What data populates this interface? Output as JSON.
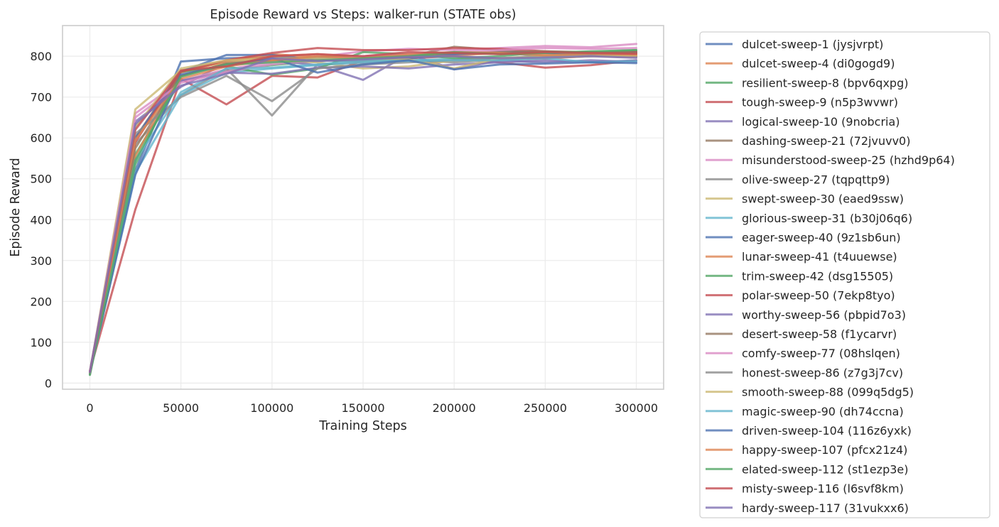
{
  "chart_data": {
    "type": "line",
    "title": "Episode Reward vs Steps: walker-run (STATE obs)",
    "xlabel": "Training Steps",
    "ylabel": "Episode Reward",
    "xlim": [
      -15000,
      315000
    ],
    "ylim": [
      -15,
      875
    ],
    "xticks": [
      0,
      50000,
      100000,
      150000,
      200000,
      250000,
      300000
    ],
    "yticks": [
      0,
      100,
      200,
      300,
      400,
      500,
      600,
      700,
      800
    ],
    "grid": true,
    "legend_position": "outside-right",
    "x": [
      0,
      25000,
      50000,
      75000,
      100000,
      125000,
      150000,
      175000,
      200000,
      225000,
      250000,
      275000,
      300000
    ],
    "series": [
      {
        "name": "dulcet-sweep-1 (jysjvrpt)",
        "color": "#4c72b0",
        "values": [
          25,
          520,
          787,
          795,
          797,
          795,
          793,
          800,
          805,
          808,
          800,
          802,
          800
        ]
      },
      {
        "name": "dulcet-sweep-4 (di0gogd9)",
        "color": "#dd8452",
        "values": [
          22,
          600,
          765,
          790,
          805,
          798,
          800,
          805,
          802,
          808,
          805,
          800,
          798
        ]
      },
      {
        "name": "resilient-sweep-8 (bpv6qxpg)",
        "color": "#55a868",
        "values": [
          20,
          560,
          740,
          765,
          778,
          788,
          795,
          790,
          790,
          795,
          800,
          805,
          808
        ]
      },
      {
        "name": "tough-sweep-9 (n5p3wvwr)",
        "color": "#c44e52",
        "values": [
          30,
          425,
          745,
          682,
          752,
          748,
          790,
          795,
          800,
          785,
          772,
          778,
          790
        ]
      },
      {
        "name": "logical-sweep-10 (9nobcria)",
        "color": "#8172b3",
        "values": [
          28,
          640,
          725,
          785,
          790,
          778,
          742,
          805,
          768,
          790,
          785,
          790,
          786
        ]
      },
      {
        "name": "dashing-sweep-21 (72jvuvv0)",
        "color": "#937860",
        "values": [
          24,
          600,
          752,
          782,
          795,
          790,
          788,
          800,
          823,
          815,
          808,
          810,
          812
        ]
      },
      {
        "name": "misunderstood-sweep-25 (hzhd9p64)",
        "color": "#da8bc3",
        "values": [
          26,
          660,
          740,
          768,
          785,
          798,
          812,
          818,
          815,
          820,
          825,
          822,
          830
        ]
      },
      {
        "name": "olive-sweep-27 (tqpqttp9)",
        "color": "#8c8c8c",
        "values": [
          22,
          585,
          705,
          770,
          655,
          780,
          785,
          790,
          785,
          792,
          795,
          800,
          800
        ]
      },
      {
        "name": "swept-sweep-30 (eaed9ssw)",
        "color": "#ccb974",
        "values": [
          25,
          670,
          765,
          785,
          790,
          785,
          770,
          775,
          790,
          795,
          800,
          802,
          805
        ]
      },
      {
        "name": "glorious-sweep-31 (b30j06q6)",
        "color": "#64b5cd",
        "values": [
          24,
          515,
          705,
          760,
          770,
          778,
          785,
          790,
          793,
          795,
          798,
          800,
          803
        ]
      },
      {
        "name": "eager-sweep-40 (9z1sb6un)",
        "color": "#4c72b0",
        "values": [
          26,
          600,
          762,
          803,
          803,
          790,
          790,
          795,
          805,
          810,
          808,
          805,
          810
        ]
      },
      {
        "name": "lunar-sweep-41 (t4uuewse)",
        "color": "#dd8452",
        "values": [
          23,
          555,
          760,
          788,
          800,
          805,
          798,
          800,
          800,
          795,
          795,
          800,
          802
        ]
      },
      {
        "name": "trim-sweep-42 (dsg15505)",
        "color": "#55a868",
        "values": [
          21,
          535,
          762,
          775,
          755,
          770,
          810,
          805,
          795,
          800,
          810,
          808,
          815
        ]
      },
      {
        "name": "polar-sweep-50 (7ekp8tyo)",
        "color": "#c44e52",
        "values": [
          27,
          590,
          762,
          790,
          808,
          820,
          815,
          815,
          820,
          818,
          812,
          808,
          810
        ]
      },
      {
        "name": "worthy-sweep-56 (pbpid7o3)",
        "color": "#8172b3",
        "values": [
          24,
          630,
          740,
          760,
          757,
          772,
          775,
          770,
          780,
          785,
          790,
          785,
          790
        ]
      },
      {
        "name": "desert-sweep-58 (f1ycarvr)",
        "color": "#937860",
        "values": [
          23,
          575,
          752,
          782,
          790,
          798,
          800,
          805,
          808,
          810,
          812,
          810,
          808
        ]
      },
      {
        "name": "comfy-sweep-77 (08hslqen)",
        "color": "#da8bc3",
        "values": [
          25,
          650,
          735,
          762,
          780,
          790,
          800,
          805,
          810,
          815,
          820,
          818,
          820
        ]
      },
      {
        "name": "honest-sweep-86 (z7g3j7cv)",
        "color": "#8c8c8c",
        "values": [
          22,
          610,
          700,
          752,
          690,
          770,
          780,
          785,
          790,
          795,
          798,
          800,
          805
        ]
      },
      {
        "name": "smooth-sweep-88 (099q5dg5)",
        "color": "#ccb974",
        "values": [
          24,
          625,
          770,
          790,
          795,
          795,
          790,
          792,
          770,
          795,
          798,
          800,
          802
        ]
      },
      {
        "name": "magic-sweep-90 (dh74ccna)",
        "color": "#64b5cd",
        "values": [
          23,
          545,
          712,
          770,
          772,
          780,
          790,
          788,
          790,
          790,
          795,
          785,
          788
        ]
      },
      {
        "name": "driven-sweep-104 (116z6yxk)",
        "color": "#4c72b0",
        "values": [
          26,
          510,
          755,
          778,
          795,
          760,
          780,
          790,
          768,
          780,
          782,
          785,
          783
        ]
      },
      {
        "name": "happy-sweep-107 (pfcx21z4)",
        "color": "#dd8452",
        "values": [
          25,
          595,
          745,
          775,
          790,
          800,
          795,
          805,
          810,
          808,
          802,
          806,
          804
        ]
      },
      {
        "name": "elated-sweep-112 (st1ezp3e)",
        "color": "#55a868",
        "values": [
          22,
          545,
          750,
          780,
          785,
          790,
          795,
          800,
          810,
          805,
          808,
          812,
          815
        ]
      },
      {
        "name": "misty-sweep-116 (l6svf8km)",
        "color": "#c44e52",
        "values": [
          28,
          620,
          765,
          775,
          800,
          805,
          800,
          810,
          808,
          805,
          810,
          808,
          806
        ]
      },
      {
        "name": "hardy-sweep-117 (31vukxx6)",
        "color": "#8172b3",
        "values": [
          27,
          635,
          728,
          757,
          795,
          788,
          792,
          798,
          800,
          795,
          797,
          800,
          796
        ]
      }
    ]
  }
}
